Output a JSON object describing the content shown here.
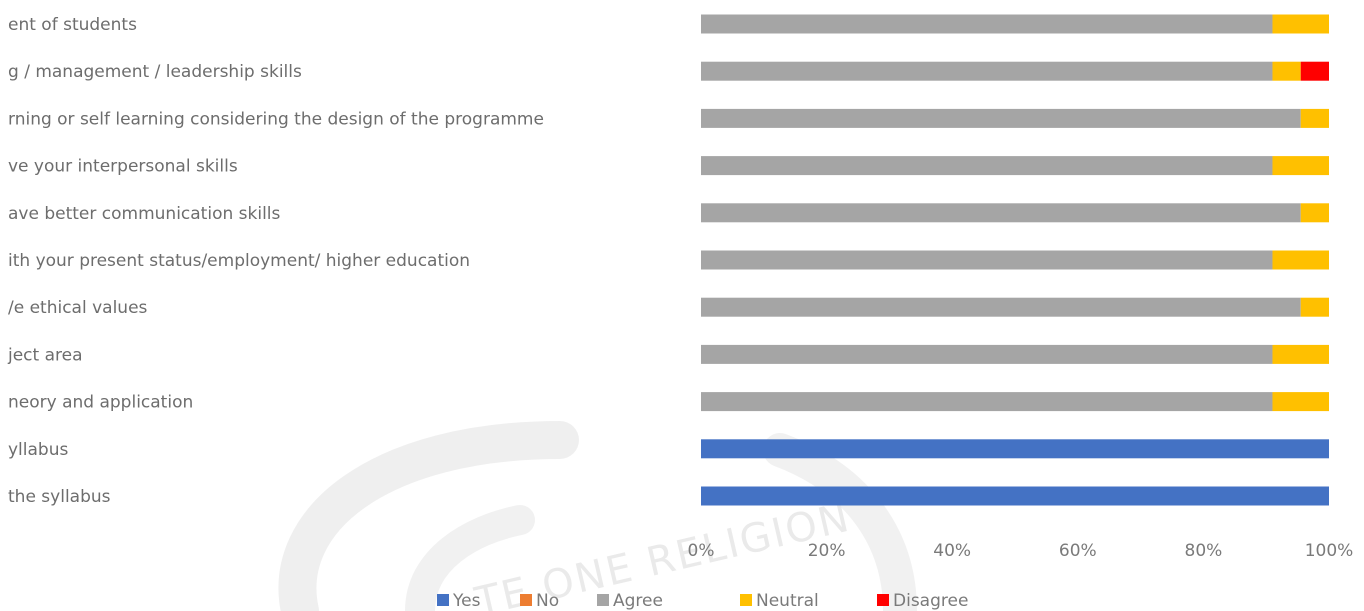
{
  "chart_data": {
    "type": "bar",
    "orientation": "horizontal",
    "stacked": "percent",
    "categories": [
      "ent of students",
      "g / management / leadership skills",
      "rning or self learning considering the design of the programme",
      "ve your interpersonal skills",
      "ave better communication skills",
      "ith your present status/employment/ higher education",
      "/e ethical values",
      "ject area",
      "neory and application",
      "yllabus",
      "the syllabus"
    ],
    "series": [
      {
        "name": "Yes",
        "color": "#4472c4",
        "values": [
          0,
          0,
          0,
          0,
          0,
          0,
          0,
          0,
          0,
          100,
          100
        ]
      },
      {
        "name": "No",
        "color": "#ed7d31",
        "values": [
          0,
          0,
          0,
          0,
          0,
          0,
          0,
          0,
          0,
          0,
          0
        ]
      },
      {
        "name": "Agree",
        "color": "#a5a5a5",
        "values": [
          91,
          91,
          95.5,
          91,
          95.5,
          91,
          95.5,
          91,
          91,
          0,
          0
        ]
      },
      {
        "name": "Neutral",
        "color": "#ffc000",
        "values": [
          9,
          4.5,
          4.5,
          9,
          4.5,
          9,
          4.5,
          9,
          9,
          0,
          0
        ]
      },
      {
        "name": "Disagree",
        "color": "#ff0000",
        "values": [
          0,
          4.5,
          0,
          0,
          0,
          0,
          0,
          0,
          0,
          0,
          0
        ]
      }
    ],
    "x_ticks": [
      "0%",
      "20%",
      "40%",
      "60%",
      "80%",
      "100%"
    ],
    "xlim": [
      0,
      100
    ],
    "legend_position": "bottom",
    "grid": false
  },
  "watermark": {
    "text": "TE ONE RELIGION"
  }
}
